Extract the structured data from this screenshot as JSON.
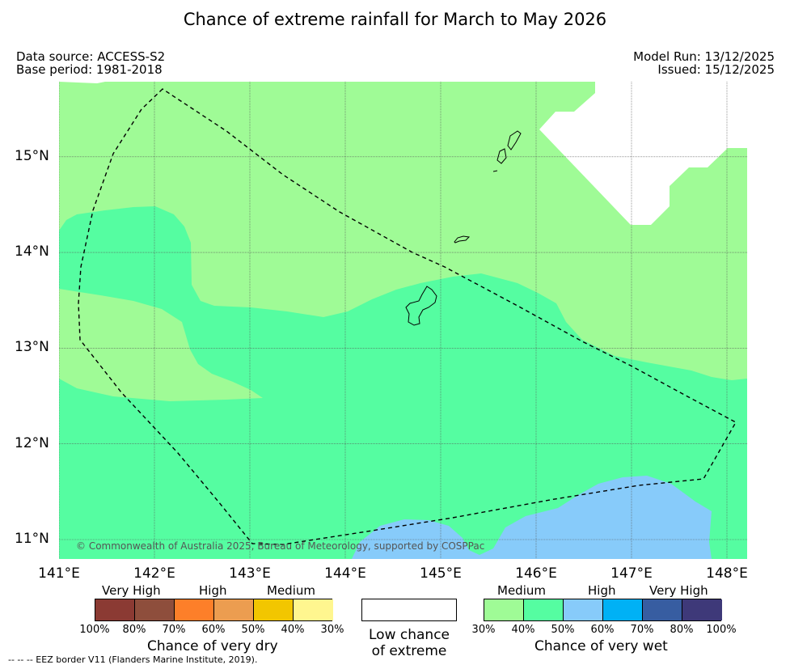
{
  "title": "Chance of extreme rainfall for March to May 2026",
  "data_source": "Data source: ACCESS-S2",
  "base_period": "Base period: 1981-2018",
  "model_run": "Model Run: 13/12/2025",
  "issued": "Issued: 15/12/2025",
  "map": {
    "lon_range": [
      141,
      148.2
    ],
    "lat_range": [
      10.8,
      15.75
    ],
    "lon_ticks": [
      "141°E",
      "142°E",
      "143°E",
      "144°E",
      "145°E",
      "146°E",
      "147°E",
      "148°E"
    ],
    "lat_ticks": [
      "11°N",
      "12°N",
      "13°N",
      "14°N",
      "15°N"
    ],
    "copyright": "© Commonwealth of Australia 2025, Bureau of Meteorology, supported by COSPPac",
    "colors": {
      "wet_medium": "#9ffb96",
      "wet_high_50": "#55fda1",
      "wet_high_60": "#87cbfa",
      "low": "#ffffff"
    }
  },
  "legend": {
    "dry": {
      "categories": [
        "Very High",
        "High",
        "Medium"
      ],
      "percent_labels": [
        "100%",
        "80%",
        "70%",
        "60%",
        "50%",
        "40%",
        "30%"
      ],
      "colors": [
        "#8b3a33",
        "#8e4e3c",
        "#fd7f29",
        "#ec9d50",
        "#f2c600",
        "#fff68f"
      ],
      "title": "Chance of very dry"
    },
    "low": {
      "title_line1": "Low chance",
      "title_line2": "of extreme"
    },
    "wet": {
      "categories": [
        "Medium",
        "High",
        "Very High"
      ],
      "percent_labels": [
        "30%",
        "40%",
        "50%",
        "60%",
        "70%",
        "80%",
        "100%"
      ],
      "colors": [
        "#9ffb96",
        "#55fda1",
        "#87cbfa",
        "#00b1f5",
        "#375da1",
        "#3e3979"
      ],
      "title": "Chance of very wet"
    }
  },
  "footer": "--  --  -- EEZ border V11 (Flanders Marine Institute, 2019)."
}
